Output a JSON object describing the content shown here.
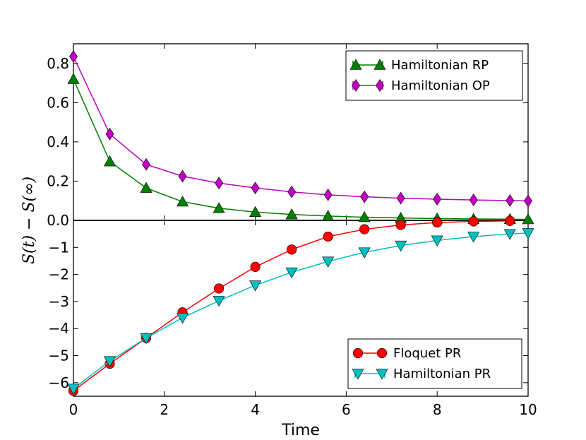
{
  "chart_data": {
    "type": "line",
    "xlabel": "Time",
    "ylabel": "S(t) − S(∞)",
    "xlim": [
      0,
      10
    ],
    "x_ticks": [
      0,
      2,
      4,
      6,
      8,
      10
    ],
    "panels": [
      {
        "name": "top",
        "ylim": [
          0,
          0.9
        ],
        "y_ticks": [
          0.0,
          0.2,
          0.4,
          0.6,
          0.8
        ],
        "y_tick_labels": [
          "0.0",
          "0.2",
          "0.4",
          "0.6",
          "0.8"
        ],
        "legend_position": "top-right",
        "series": [
          {
            "name": "Hamiltonian RP",
            "color": "#008000",
            "marker": "triangle-up",
            "x": [
              0,
              0.8,
              1.6,
              2.4,
              3.2,
              4.0,
              4.8,
              5.6,
              6.4,
              7.2,
              8.0,
              8.8,
              9.6,
              10.0
            ],
            "y": [
              0.72,
              0.3,
              0.165,
              0.095,
              0.062,
              0.042,
              0.03,
              0.022,
              0.016,
              0.012,
              0.009,
              0.007,
              0.006,
              0.005
            ]
          },
          {
            "name": "Hamiltonian OP",
            "color": "#bf00bf",
            "marker": "diamond",
            "x": [
              0,
              0.8,
              1.6,
              2.4,
              3.2,
              4.0,
              4.8,
              5.6,
              6.4,
              7.2,
              8.0,
              8.8,
              9.6,
              10.0
            ],
            "y": [
              0.835,
              0.44,
              0.285,
              0.225,
              0.19,
              0.165,
              0.145,
              0.13,
              0.12,
              0.113,
              0.108,
              0.104,
              0.101,
              0.099
            ]
          }
        ]
      },
      {
        "name": "bottom",
        "ylim": [
          -6.5,
          0
        ],
        "y_ticks": [
          -1,
          -2,
          -3,
          -4,
          -5,
          -6
        ],
        "y_tick_labels": [
          "−1",
          "−2",
          "−3",
          "−4",
          "−5",
          "−6"
        ],
        "legend_position": "bottom-right",
        "series": [
          {
            "name": "Floquet PR",
            "color": "#ff0000",
            "marker": "circle",
            "x": [
              0,
              0.8,
              1.6,
              2.4,
              3.2,
              4.0,
              4.8,
              5.6,
              6.4,
              7.2,
              8.0,
              8.8,
              9.6
            ],
            "y": [
              -6.3,
              -5.3,
              -4.35,
              -3.4,
              -2.52,
              -1.72,
              -1.08,
              -0.6,
              -0.33,
              -0.17,
              -0.08,
              -0.04,
              -0.02
            ]
          },
          {
            "name": "Hamiltonian PR",
            "color": "#00bfbf",
            "marker": "triangle-down",
            "x": [
              0,
              0.8,
              1.6,
              2.4,
              3.2,
              4.0,
              4.8,
              5.6,
              6.4,
              7.2,
              8.0,
              8.8,
              9.6,
              10.0
            ],
            "y": [
              -6.22,
              -5.2,
              -4.35,
              -3.6,
              -2.97,
              -2.4,
              -1.92,
              -1.52,
              -1.18,
              -0.93,
              -0.74,
              -0.6,
              -0.5,
              -0.47
            ]
          }
        ]
      }
    ]
  }
}
